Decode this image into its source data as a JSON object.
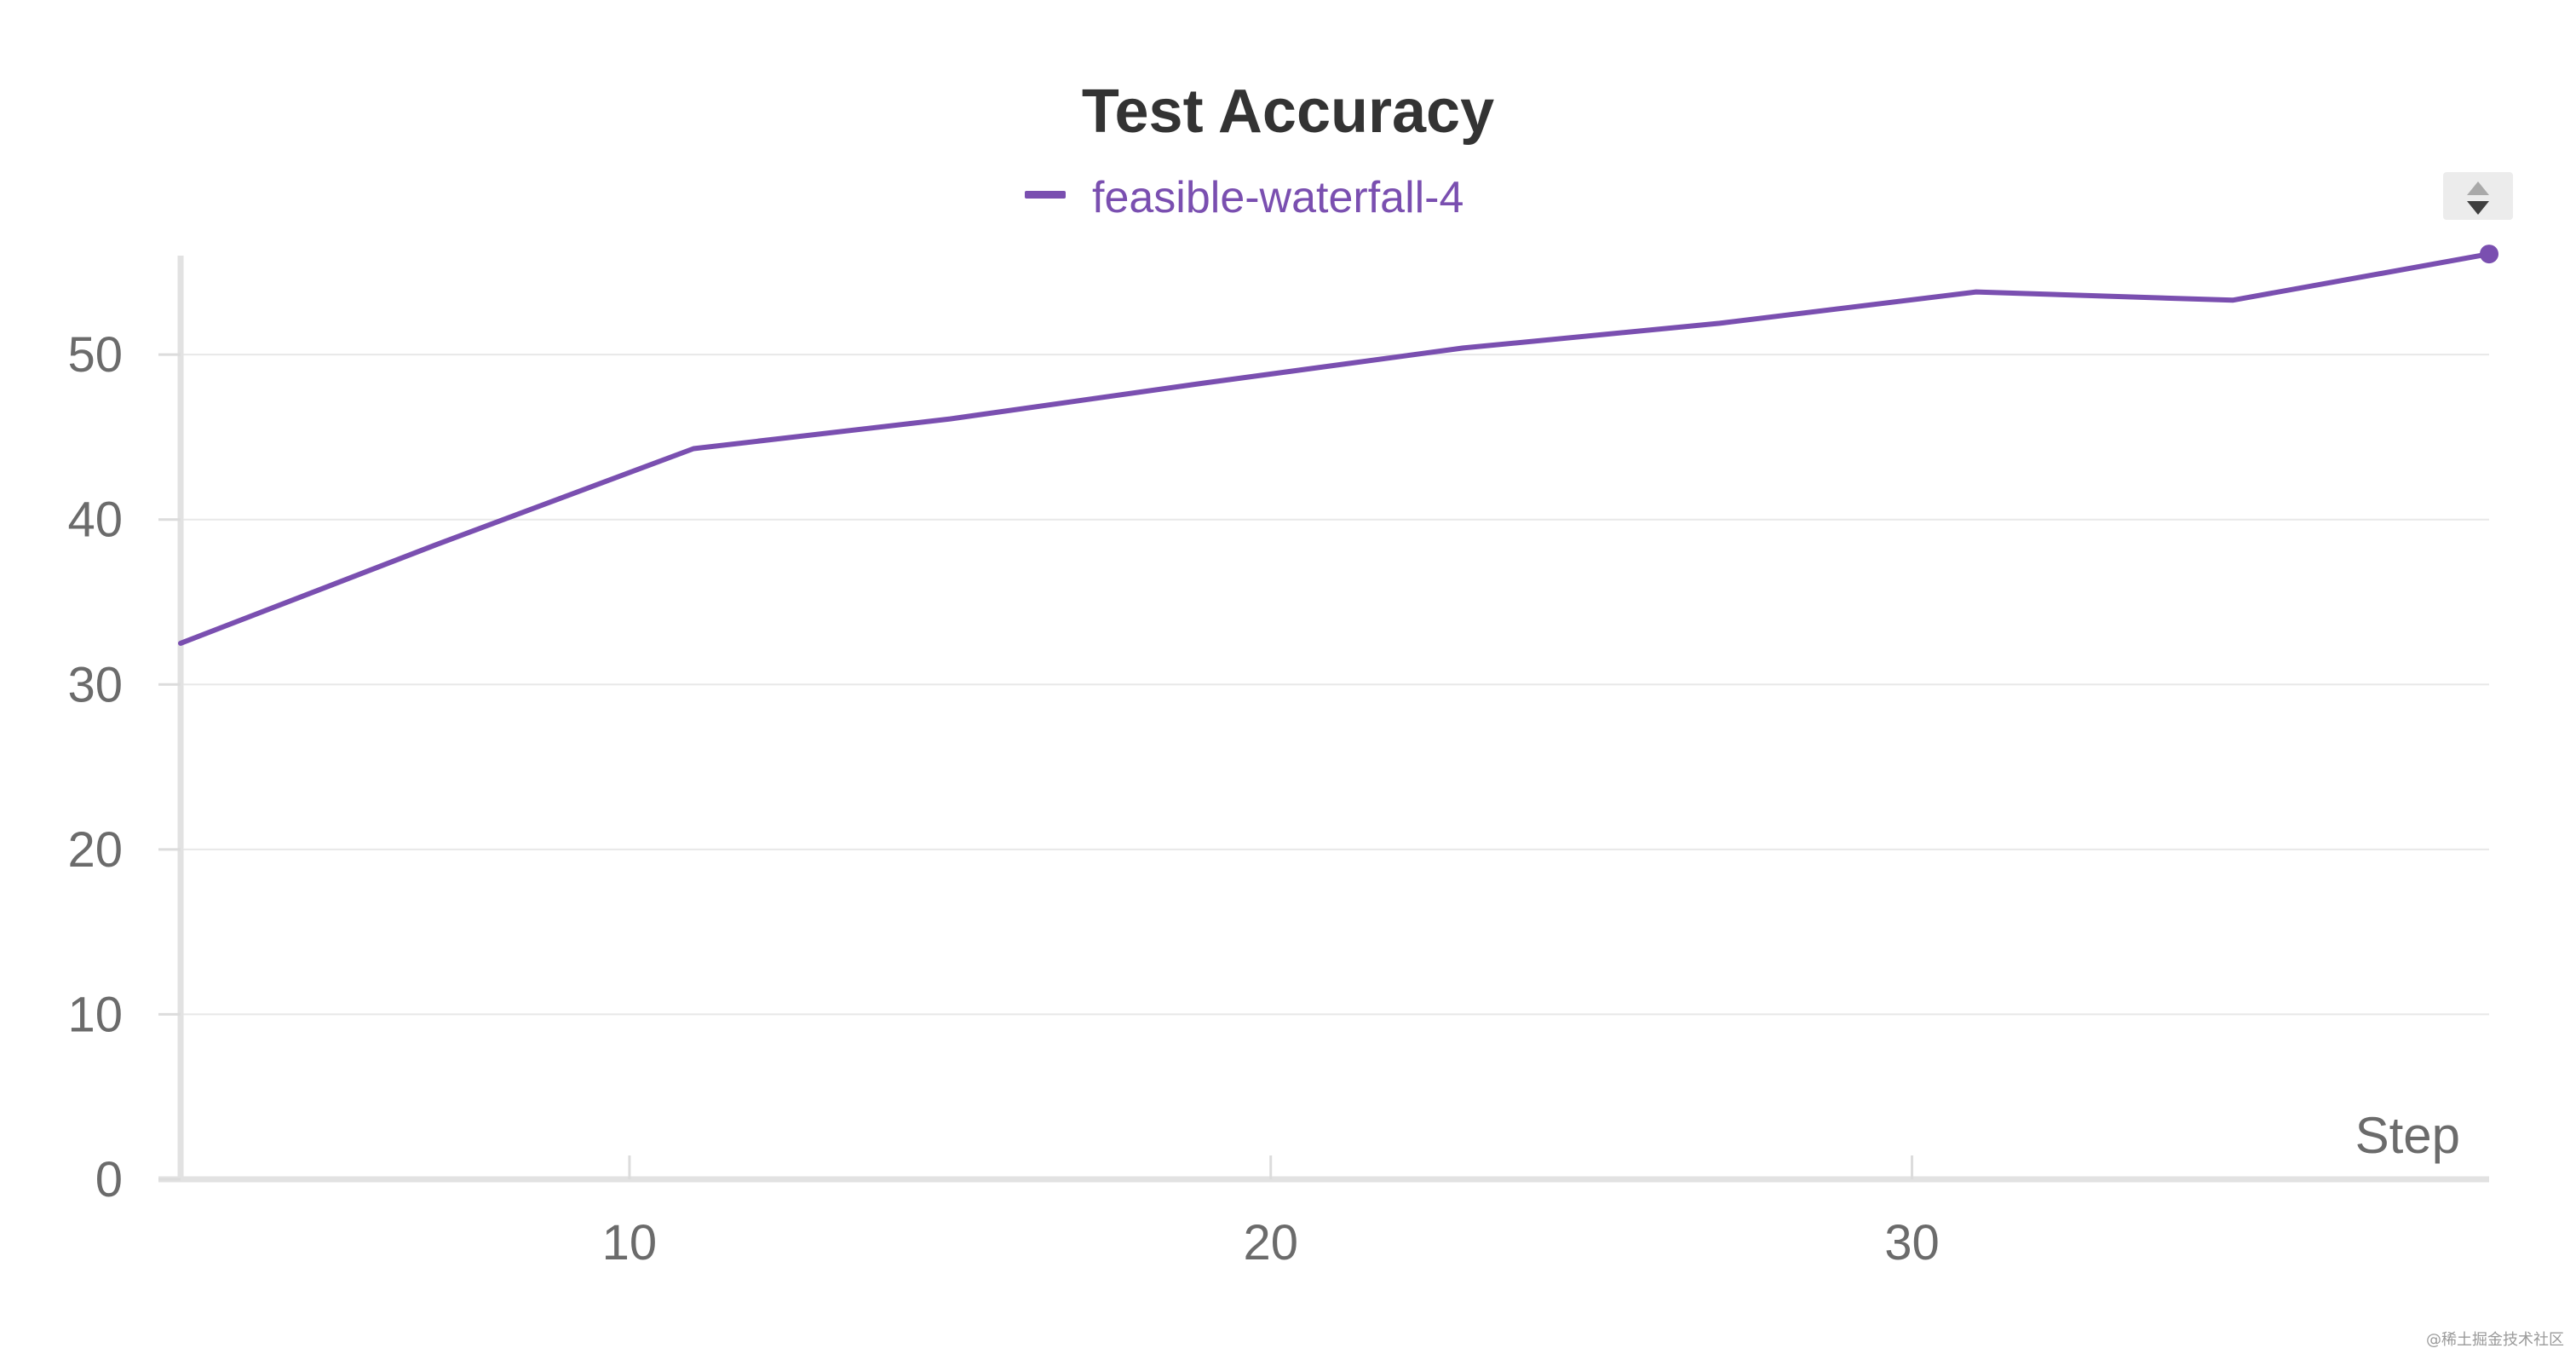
{
  "chart_data": {
    "type": "line",
    "title": "Test Accuracy",
    "xlabel": "Step",
    "ylabel": "",
    "xlim": [
      3,
      39
    ],
    "ylim": [
      0,
      56
    ],
    "x_ticks": [
      10,
      20,
      30
    ],
    "y_ticks": [
      0,
      10,
      20,
      30,
      40,
      50
    ],
    "grid": true,
    "legend_position": "top",
    "series": [
      {
        "name": "feasible-waterfall-4",
        "color": "#7a4fb0",
        "x": [
          3,
          7,
          11,
          15,
          19,
          23,
          27,
          31,
          35,
          39
        ],
        "y": [
          32.5,
          38.5,
          44.3,
          46.1,
          48.3,
          50.4,
          51.9,
          53.8,
          53.3,
          56.1
        ]
      }
    ]
  },
  "controls": {
    "sort_icon": "sort-arrows-icon"
  },
  "watermark": "@稀土掘金技术社区"
}
